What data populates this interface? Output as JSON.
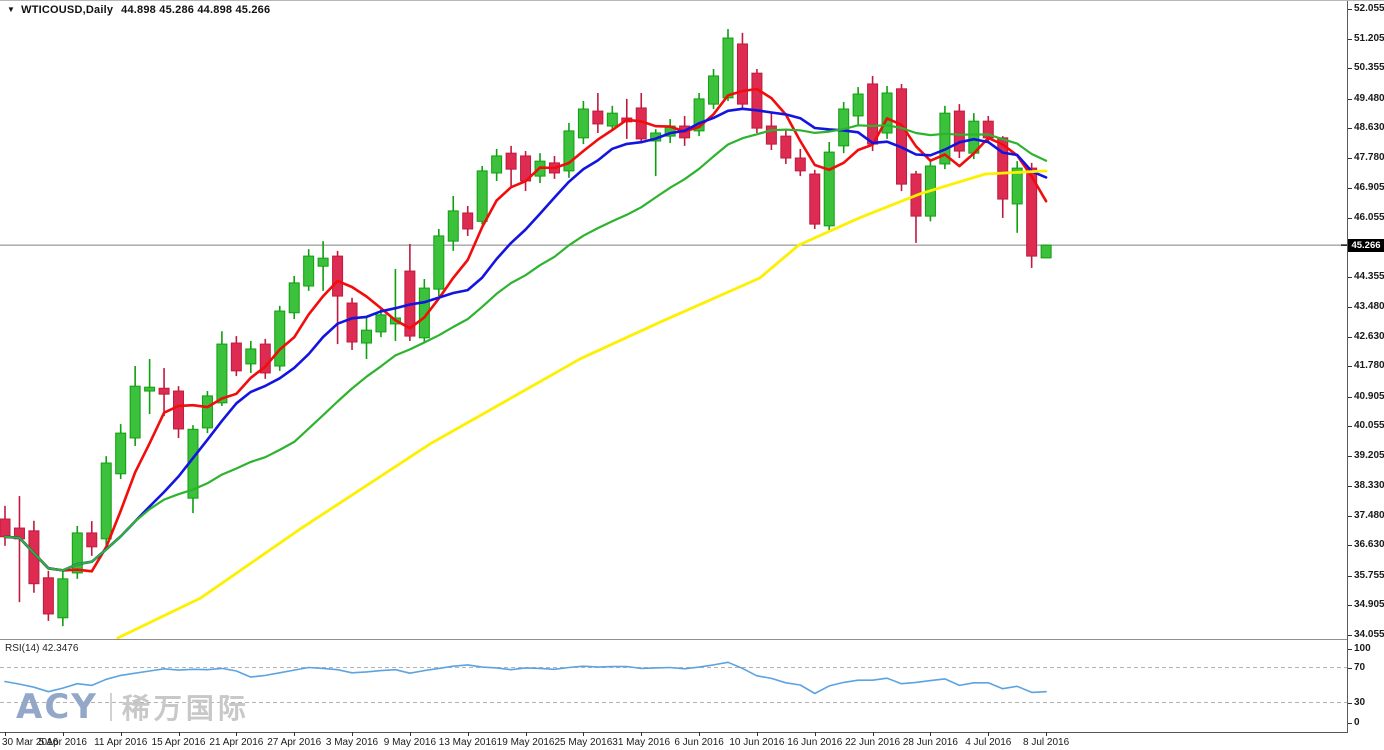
{
  "header": {
    "dropdown_icon": "▼",
    "symbol": "WTICOUSD,Daily",
    "quote": "44.898 45.286 44.898 45.266"
  },
  "watermark": {
    "brand": "ACY",
    "cjk": "稀万国际"
  },
  "price_axis": {
    "values": [
      52.055,
      51.205,
      50.355,
      49.48,
      48.63,
      47.78,
      46.905,
      46.055,
      44.355,
      43.48,
      42.63,
      41.78,
      40.905,
      40.055,
      39.205,
      38.33,
      37.48,
      36.63,
      35.755,
      34.905,
      34.055
    ],
    "current": "45.266"
  },
  "rsi_axis": {
    "values": [
      100,
      70,
      30,
      0
    ]
  },
  "colors": {
    "bull_fill": "#3cc13c",
    "bull_border": "#0f9f0f",
    "bear_fill": "#dd2b51",
    "bear_border": "#bf1a3e",
    "ma_fast": "#f20c0c",
    "ma_mid": "#1414e0",
    "ma_slow": "#2eb32e",
    "ma_long": "#fdf000",
    "rsi_line": "#5da3e0",
    "price_line": "#808080",
    "badge_bg": "#000000",
    "badge_text": "#ffffff",
    "level_line": "#b3b3b3",
    "axis_text": "#1a1a1a"
  },
  "chart_data": {
    "type": "candlestick",
    "symbol": "WTICOUSD",
    "timeframe": "Daily",
    "ohlc_display": [
      44.898,
      45.286,
      44.898,
      45.266
    ],
    "current_price": 45.266,
    "ylim": [
      34.055,
      52.055
    ],
    "x_labels": [
      {
        "i": 0,
        "t": "30 Mar 2016"
      },
      {
        "i": 4,
        "t": "5 Apr 2016"
      },
      {
        "i": 8,
        "t": "11 Apr 2016"
      },
      {
        "i": 12,
        "t": "15 Apr 2016"
      },
      {
        "i": 16,
        "t": "21 Apr 2016"
      },
      {
        "i": 20,
        "t": "27 Apr 2016"
      },
      {
        "i": 24,
        "t": "3 May 2016"
      },
      {
        "i": 28,
        "t": "9 May 2016"
      },
      {
        "i": 32,
        "t": "13 May 2016"
      },
      {
        "i": 36,
        "t": "19 May 2016"
      },
      {
        "i": 40,
        "t": "25 May 2016"
      },
      {
        "i": 44,
        "t": "31 May 2016"
      },
      {
        "i": 48,
        "t": "6 Jun 2016"
      },
      {
        "i": 52,
        "t": "10 Jun 2016"
      },
      {
        "i": 56,
        "t": "16 Jun 2016"
      },
      {
        "i": 60,
        "t": "22 Jun 2016"
      },
      {
        "i": 64,
        "t": "28 Jun 2016"
      },
      {
        "i": 68,
        "t": "4 Jul 2016"
      },
      {
        "i": 72,
        "t": "8 Jul 2016"
      }
    ],
    "candles": [
      [
        "30 Mar 2016",
        37.39,
        37.77,
        36.62,
        36.88
      ],
      [
        "31 Mar 2016",
        37.13,
        38.05,
        35.0,
        36.82
      ],
      [
        "1 Apr 2016",
        37.05,
        37.34,
        35.27,
        35.53
      ],
      [
        "4 Apr 2016",
        35.7,
        35.9,
        34.46,
        34.66
      ],
      [
        "5 Apr 2016",
        34.55,
        35.9,
        34.31,
        35.67
      ],
      [
        "6 Apr 2016",
        35.84,
        37.19,
        35.67,
        36.99
      ],
      [
        "7 Apr 2016",
        36.99,
        37.33,
        36.33,
        36.59
      ],
      [
        "8 Apr 2016",
        36.82,
        39.2,
        36.62,
        39.0
      ],
      [
        "11 Apr 2016",
        38.69,
        40.12,
        38.54,
        39.86
      ],
      [
        "12 Apr 2016",
        39.72,
        41.79,
        39.49,
        41.21
      ],
      [
        "13 Apr 2016",
        41.07,
        41.99,
        40.41,
        41.18
      ],
      [
        "14 Apr 2016",
        41.15,
        41.73,
        40.35,
        40.98
      ],
      [
        "15 Apr 2016",
        41.07,
        41.21,
        39.72,
        39.98
      ],
      [
        "18 Apr 2016",
        37.99,
        40.09,
        37.56,
        39.97
      ],
      [
        "19 Apr 2016",
        40.01,
        41.07,
        39.86,
        40.93
      ],
      [
        "20 Apr 2016",
        40.73,
        42.79,
        40.64,
        42.42
      ],
      [
        "21 Apr 2016",
        42.45,
        42.65,
        41.5,
        41.65
      ],
      [
        "22 Apr 2016",
        41.85,
        42.51,
        41.59,
        42.28
      ],
      [
        "25 Apr 2016",
        42.42,
        42.57,
        41.42,
        41.59
      ],
      [
        "26 Apr 2016",
        41.79,
        43.52,
        41.65,
        43.37
      ],
      [
        "27 Apr 2016",
        43.32,
        44.38,
        43.14,
        44.18
      ],
      [
        "28 Apr 2016",
        44.09,
        45.15,
        43.95,
        44.95
      ],
      [
        "29 Apr 2016",
        44.66,
        45.38,
        43.95,
        44.89
      ],
      [
        "2 May 2016",
        44.95,
        45.1,
        42.42,
        43.8
      ],
      [
        "3 May 2016",
        43.6,
        43.75,
        42.25,
        42.48
      ],
      [
        "4 May 2016",
        42.45,
        43.22,
        41.99,
        42.82
      ],
      [
        "5 May 2016",
        42.77,
        43.46,
        42.62,
        43.26
      ],
      [
        "6 May 2016",
        43.0,
        44.58,
        42.51,
        43.17
      ],
      [
        "9 May 2016",
        44.52,
        45.3,
        42.51,
        42.65
      ],
      [
        "10 May 2016",
        42.6,
        44.29,
        42.45,
        44.03
      ],
      [
        "11 May 2016",
        44.0,
        45.73,
        43.8,
        45.53
      ],
      [
        "12 May 2016",
        45.38,
        46.68,
        45.1,
        46.25
      ],
      [
        "13 May 2016",
        46.19,
        46.39,
        45.53,
        45.73
      ],
      [
        "16 May 2016",
        45.95,
        47.54,
        45.86,
        47.4
      ],
      [
        "17 May 2016",
        47.34,
        48.03,
        47.11,
        47.83
      ],
      [
        "18 May 2016",
        47.91,
        48.12,
        46.96,
        47.45
      ],
      [
        "19 May 2016",
        47.83,
        47.97,
        46.82,
        47.11
      ],
      [
        "20 May 2016",
        47.25,
        47.91,
        47.05,
        47.68
      ],
      [
        "23 May 2016",
        47.63,
        47.83,
        47.17,
        47.34
      ],
      [
        "24 May 2016",
        47.4,
        48.78,
        47.2,
        48.55
      ],
      [
        "25 May 2016",
        48.35,
        49.41,
        48.17,
        49.18
      ],
      [
        "26 May 2016",
        49.12,
        49.64,
        48.49,
        48.75
      ],
      [
        "27 May 2016",
        48.69,
        49.27,
        48.55,
        49.06
      ],
      [
        "30 May 2016",
        48.92,
        49.47,
        48.32,
        48.81
      ],
      [
        "31 May 2016",
        49.21,
        49.64,
        48.26,
        48.32
      ],
      [
        "1 Jun 2016",
        48.26,
        48.6,
        47.25,
        48.49
      ],
      [
        "2 Jun 2016",
        48.4,
        48.89,
        48.2,
        48.69
      ],
      [
        "3 Jun 2016",
        48.69,
        48.98,
        48.12,
        48.35
      ],
      [
        "6 Jun 2016",
        48.55,
        49.64,
        48.4,
        49.47
      ],
      [
        "7 Jun 2016",
        49.32,
        50.33,
        49.18,
        50.13
      ],
      [
        "8 Jun 2016",
        49.5,
        51.48,
        49.41,
        51.22
      ],
      [
        "9 Jun 2016",
        51.05,
        51.37,
        49.18,
        49.32
      ],
      [
        "10 Jun 2016",
        50.21,
        50.33,
        48.49,
        48.63
      ],
      [
        "13 Jun 2016",
        48.69,
        49.06,
        48.0,
        48.17
      ],
      [
        "14 Jun 2016",
        48.4,
        48.6,
        47.6,
        47.77
      ],
      [
        "15 Jun 2016",
        47.77,
        48.03,
        47.25,
        47.4
      ],
      [
        "16 Jun 2016",
        47.31,
        47.43,
        45.73,
        45.87
      ],
      [
        "17 Jun 2016",
        45.82,
        48.23,
        45.67,
        47.94
      ],
      [
        "20 Jun 2016",
        48.12,
        49.38,
        47.91,
        49.18
      ],
      [
        "21 Jun 2016",
        48.98,
        49.81,
        48.72,
        49.61
      ],
      [
        "22 Jun 2016",
        49.9,
        50.13,
        47.97,
        48.17
      ],
      [
        "23 Jun 2016",
        48.49,
        49.84,
        48.32,
        49.64
      ],
      [
        "24 Jun 2016",
        49.76,
        49.9,
        46.82,
        47.02
      ],
      [
        "27 Jun 2016",
        47.31,
        47.4,
        45.33,
        46.1
      ],
      [
        "28 Jun 2016",
        46.1,
        47.68,
        45.95,
        47.54
      ],
      [
        "29 Jun 2016",
        47.6,
        49.27,
        47.45,
        49.06
      ],
      [
        "30 Jun 2016",
        49.12,
        49.32,
        47.77,
        47.97
      ],
      [
        "1 Jul 2016",
        47.91,
        49.06,
        47.74,
        48.83
      ],
      [
        "4 Jul 2016",
        48.83,
        48.98,
        48.2,
        48.35
      ],
      [
        "5 Jul 2016",
        48.35,
        48.4,
        46.05,
        46.59
      ],
      [
        "6 Jul 2016",
        46.45,
        47.68,
        45.62,
        47.48
      ],
      [
        "7 Jul 2016",
        47.48,
        47.63,
        44.61,
        44.95
      ],
      [
        "8 Jul 2016",
        44.898,
        45.286,
        44.898,
        45.266
      ]
    ],
    "overlays": [
      {
        "name": "ma-fast",
        "color_key": "ma_fast",
        "width": 2.6,
        "period": 5
      },
      {
        "name": "ma-mid",
        "color_key": "ma_mid",
        "width": 2.6,
        "period": 10
      },
      {
        "name": "ma-slow",
        "color_key": "ma_slow",
        "width": 2.2,
        "period": 21
      },
      {
        "name": "ma-long",
        "color_key": "ma_long",
        "width": 2.8,
        "points": [
          [
            7.8,
            33.97
          ],
          [
            13.5,
            35.11
          ],
          [
            20.4,
            37.1
          ],
          [
            29.4,
            39.55
          ],
          [
            39.8,
            42.0
          ],
          [
            45.3,
            43.05
          ],
          [
            52.2,
            44.32
          ],
          [
            54.9,
            45.27
          ],
          [
            59.1,
            46.05
          ],
          [
            63.3,
            46.74
          ],
          [
            67.8,
            47.31
          ],
          [
            72,
            47.4
          ]
        ]
      }
    ],
    "indicator": {
      "name": "RSI",
      "period": 14,
      "value": 42.3476,
      "label": "RSI(14) 42.3476",
      "range": [
        0,
        100
      ],
      "levels": [
        70,
        30
      ],
      "values": [
        54,
        51,
        47.5,
        42.3,
        46.5,
        51.5,
        49.5,
        56.5,
        61,
        63.5,
        66,
        68.5,
        67,
        68,
        67.5,
        69,
        66,
        59,
        61,
        64,
        67,
        70,
        69,
        67.5,
        64,
        65,
        66.5,
        67.5,
        63.5,
        66.5,
        69,
        71.5,
        73,
        70.5,
        69.5,
        67.5,
        69.5,
        69,
        68,
        70,
        71.5,
        70.5,
        71,
        71,
        69,
        69.5,
        70,
        68.5,
        70.5,
        73,
        76,
        69,
        60.5,
        57.5,
        52.5,
        50,
        40.3,
        49,
        53,
        55.5,
        55.5,
        57.8,
        51.5,
        53,
        55,
        57,
        49.5,
        52.5,
        52.5,
        45.8,
        48.5,
        41.5,
        42.35
      ]
    }
  }
}
